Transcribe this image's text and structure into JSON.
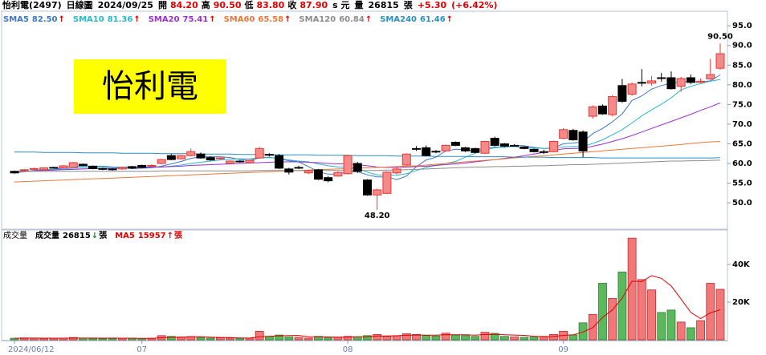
{
  "header": {
    "stock": "怡利電(2497)",
    "period": "日線圖",
    "date": "2024/09/25",
    "quotes": [
      {
        "label": "開",
        "value": "84.20"
      },
      {
        "label": "高",
        "value": "90.50"
      },
      {
        "label": "低",
        "value": "83.80"
      },
      {
        "label": "收",
        "value": "87.90"
      }
    ],
    "currency": "s 元",
    "volume_label": "量",
    "volume": "26815",
    "volume_unit": "張",
    "change": "+5.30",
    "change_pct": "(+6.42%)"
  },
  "watermark": "怡利電",
  "chart_data": [
    {
      "type": "candlestick",
      "categories": [
        "2024/06/12",
        null,
        null,
        null,
        null,
        null,
        null,
        null,
        null,
        null,
        null,
        null,
        null,
        "07",
        null,
        null,
        null,
        null,
        null,
        null,
        null,
        null,
        null,
        null,
        null,
        null,
        null,
        null,
        null,
        null,
        null,
        null,
        null,
        null,
        "08",
        null,
        null,
        null,
        null,
        null,
        null,
        null,
        null,
        null,
        null,
        null,
        null,
        null,
        null,
        null,
        null,
        null,
        null,
        null,
        null,
        null,
        "09",
        null,
        null,
        null,
        null,
        null,
        null,
        null,
        null,
        null,
        null,
        null,
        null,
        null,
        null,
        null,
        null
      ],
      "open": [
        58.0,
        58.2,
        58.6,
        58.4,
        59.0,
        58.9,
        59.0,
        59.8,
        59.3,
        58.7,
        58.6,
        58.6,
        59.2,
        59.5,
        59.4,
        60.0,
        62.0,
        61.2,
        62.0,
        62.4,
        61.5,
        61.3,
        60.0,
        60.6,
        60.2,
        61.4,
        62.3,
        62.0,
        58.6,
        59.0,
        57.6,
        58.4,
        56.4,
        56.8,
        57.4,
        60.0,
        55.8,
        52.0,
        52.4,
        57.6,
        59.6,
        63.8,
        64.0,
        63.1,
        63.2,
        65.4,
        64.0,
        63.8,
        62.6,
        66.4,
        65.0,
        64.6,
        64.2,
        63.6,
        63.0,
        63.0,
        66.4,
        68.4,
        68.0,
        72.0,
        74.6,
        72.4,
        79.8,
        77.6,
        80.6,
        80.4,
        81.8,
        81.8,
        79.6,
        81.8,
        80.6,
        81.5,
        84.2
      ],
      "high": [
        58.2,
        58.6,
        58.9,
        59.0,
        59.2,
        59.6,
        60.4,
        60.0,
        59.5,
        58.9,
        58.8,
        59.2,
        59.4,
        59.7,
        59.8,
        61.2,
        62.4,
        62.2,
        63.8,
        62.8,
        61.8,
        61.6,
        60.8,
        60.8,
        61.0,
        64.2,
        62.6,
        62.4,
        58.9,
        59.4,
        58.4,
        58.6,
        56.8,
        58.0,
        62.2,
        60.4,
        56.0,
        53.6,
        58.0,
        59.0,
        62.6,
        64.4,
        64.6,
        63.4,
        64.8,
        65.6,
        64.2,
        64.0,
        65.8,
        66.8,
        65.2,
        64.9,
        64.4,
        63.8,
        63.5,
        65.8,
        69.0,
        68.8,
        68.4,
        74.8,
        75.0,
        77.4,
        81.5,
        80.6,
        84.0,
        82.2,
        83.0,
        83.4,
        82.0,
        82.6,
        81.6,
        86.6,
        90.5
      ],
      "low": [
        57.4,
        57.9,
        58.3,
        58.2,
        58.7,
        58.7,
        58.9,
        59.3,
        58.5,
        58.3,
        58.2,
        58.4,
        58.6,
        58.8,
        59.2,
        59.8,
        60.8,
        61.0,
        61.8,
        61.2,
        60.7,
        61.0,
        59.8,
        60.2,
        60.0,
        61.2,
        61.8,
        58.6,
        57.2,
        58.6,
        57.3,
        55.8,
        55.2,
        56.6,
        57.2,
        57.6,
        51.8,
        48.2,
        52.2,
        57.2,
        59.4,
        63.2,
        61.8,
        62.6,
        63.0,
        64.4,
        62.9,
        62.6,
        62.4,
        64.4,
        64.2,
        64.3,
        63.6,
        62.8,
        62.4,
        62.8,
        66.2,
        65.8,
        61.6,
        71.4,
        72.4,
        72.0,
        75.4,
        77.2,
        79.6,
        79.8,
        80.8,
        78.8,
        78.2,
        80.2,
        80.4,
        81.2,
        83.8
      ],
      "close": [
        57.6,
        58.4,
        58.7,
        58.9,
        59.0,
        59.4,
        60.2,
        59.5,
        58.7,
        58.6,
        58.5,
        59.0,
        58.8,
        59.0,
        59.5,
        61.0,
        61.0,
        62.0,
        63.0,
        61.4,
        60.9,
        61.4,
        60.6,
        60.5,
        60.8,
        63.8,
        62.2,
        58.8,
        57.8,
        59.0,
        58.2,
        56.0,
        55.6,
        57.7,
        62.0,
        58.0,
        52.0,
        53.3,
        57.8,
        58.6,
        62.4,
        63.8,
        62.0,
        63.0,
        64.6,
        64.6,
        63.2,
        62.8,
        65.6,
        64.6,
        64.4,
        64.6,
        63.8,
        63.0,
        63.0,
        65.6,
        68.6,
        66.0,
        63.2,
        74.4,
        72.6,
        77.0,
        75.8,
        80.2,
        80.6,
        81.0,
        81.6,
        79.0,
        81.6,
        80.6,
        80.9,
        82.6,
        87.9
      ],
      "up_color": "#e53935",
      "up_fill": "#f48a8a",
      "down_color": "#000000",
      "series": [
        {
          "name": "SMA5",
          "value_label": "82.50",
          "trend": "↑",
          "color": "#3a78c8",
          "values": [
            57.6,
            57.9,
            58.2,
            58.4,
            58.5,
            58.9,
            59.2,
            59.3,
            59.3,
            59.3,
            59.1,
            58.9,
            58.7,
            58.8,
            58.9,
            59.3,
            59.9,
            60.5,
            61.3,
            61.7,
            61.7,
            61.7,
            61.5,
            61.0,
            60.8,
            61.4,
            61.6,
            61.2,
            60.7,
            60.4,
            59.2,
            57.9,
            57.3,
            57.3,
            57.9,
            57.9,
            57.1,
            56.6,
            56.6,
            55.9,
            56.8,
            59.2,
            60.9,
            61.6,
            63.2,
            63.6,
            63.5,
            63.2,
            63.8,
            64.2,
            64.1,
            64.6,
            64.5,
            64.1,
            63.8,
            64.0,
            65.0,
            65.2,
            65.5,
            67.6,
            68.9,
            70.6,
            72.6,
            76.0,
            77.2,
            78.9,
            79.8,
            80.4,
            80.8,
            80.7,
            80.7,
            81.0,
            82.5
          ]
        },
        {
          "name": "SMA10",
          "value_label": "81.36",
          "trend": "↑",
          "color": "#2ab7c9",
          "values": [
            57.8,
            57.9,
            58.1,
            58.3,
            58.5,
            58.6,
            58.8,
            58.9,
            59.0,
            59.0,
            59.1,
            59.1,
            59.1,
            59.1,
            59.1,
            59.1,
            59.3,
            59.6,
            60.0,
            60.3,
            60.6,
            60.9,
            61.1,
            61.2,
            61.2,
            61.4,
            61.5,
            61.3,
            60.9,
            60.6,
            60.4,
            59.9,
            59.4,
            59.1,
            59.1,
            58.8,
            57.8,
            57.1,
            57.1,
            57.0,
            57.4,
            58.2,
            59.0,
            59.5,
            60.0,
            60.5,
            61.6,
            62.6,
            63.4,
            64.0,
            64.2,
            64.3,
            64.0,
            63.9,
            63.8,
            63.8,
            64.2,
            64.3,
            64.3,
            65.1,
            66.0,
            67.3,
            68.6,
            70.3,
            72.1,
            73.6,
            75.1,
            76.7,
            78.7,
            79.6,
            80.3,
            80.9,
            81.36
          ]
        },
        {
          "name": "SMA20",
          "value_label": "75.41",
          "trend": "↑",
          "color": "#9b30d0",
          "values": [
            57.9,
            58.0,
            58.1,
            58.2,
            58.3,
            58.4,
            58.5,
            58.6,
            58.7,
            58.7,
            58.8,
            58.8,
            58.9,
            58.9,
            59.0,
            59.1,
            59.2,
            59.3,
            59.5,
            59.6,
            59.7,
            59.8,
            59.9,
            60.0,
            60.1,
            60.2,
            60.3,
            60.4,
            60.4,
            60.4,
            60.3,
            60.2,
            60.0,
            59.9,
            59.9,
            59.7,
            59.4,
            59.1,
            59.0,
            59.0,
            59.1,
            59.2,
            59.3,
            59.5,
            59.7,
            59.9,
            60.1,
            60.4,
            60.7,
            61.0,
            61.3,
            61.6,
            62.0,
            62.4,
            62.8,
            63.3,
            63.7,
            63.8,
            63.8,
            64.4,
            64.9,
            65.6,
            66.3,
            67.1,
            68.0,
            68.9,
            69.8,
            70.7,
            71.6,
            72.5,
            73.5,
            74.4,
            75.41
          ]
        },
        {
          "name": "SMA60",
          "value_label": "65.58",
          "trend": "↑",
          "color": "#e8783a",
          "values": [
            55.3,
            55.4,
            55.5,
            55.6,
            55.7,
            55.8,
            55.9,
            56.0,
            56.1,
            56.2,
            56.3,
            56.4,
            56.5,
            56.6,
            56.7,
            56.8,
            56.9,
            57.0,
            57.1,
            57.2,
            57.3,
            57.4,
            57.5,
            57.6,
            57.7,
            57.8,
            57.9,
            58.0,
            58.1,
            58.2,
            58.3,
            58.4,
            58.5,
            58.6,
            58.7,
            58.8,
            58.9,
            59.0,
            59.1,
            59.2,
            59.3,
            59.4,
            59.6,
            59.8,
            60.0,
            60.2,
            60.4,
            60.6,
            60.8,
            61.0,
            61.2,
            61.4,
            61.6,
            61.8,
            62.0,
            62.2,
            62.4,
            62.6,
            62.8,
            63.0,
            63.2,
            63.4,
            63.6,
            63.8,
            64.0,
            64.2,
            64.4,
            64.6,
            64.8,
            65.1,
            65.3,
            65.5,
            65.58
          ]
        },
        {
          "name": "SMA120",
          "value_label": "60.84",
          "trend": "↑",
          "color": "#8c8c8c",
          "values": [
            58.0,
            58.0,
            58.0,
            58.0,
            58.0,
            58.0,
            58.0,
            58.0,
            58.0,
            58.0,
            58.0,
            58.0,
            58.0,
            58.0,
            58.0,
            58.1,
            58.1,
            58.1,
            58.1,
            58.1,
            58.1,
            58.1,
            58.1,
            58.1,
            58.1,
            58.2,
            58.2,
            58.2,
            58.2,
            58.2,
            58.2,
            58.2,
            58.2,
            58.2,
            58.2,
            58.2,
            58.2,
            58.2,
            58.3,
            58.3,
            58.4,
            58.5,
            58.6,
            58.7,
            58.8,
            58.9,
            59.0,
            59.1,
            59.1,
            59.2,
            59.2,
            59.3,
            59.3,
            59.4,
            59.4,
            59.5,
            59.6,
            59.7,
            59.7,
            59.8,
            59.9,
            60.0,
            60.1,
            60.2,
            60.3,
            60.4,
            60.5,
            60.6,
            60.6,
            60.7,
            60.7,
            60.8,
            60.84
          ]
        },
        {
          "name": "SMA240",
          "value_label": "61.46",
          "trend": "↑",
          "color": "#2a8fc0",
          "values": [
            62.9,
            62.9,
            62.9,
            62.8,
            62.8,
            62.8,
            62.8,
            62.7,
            62.7,
            62.7,
            62.7,
            62.6,
            62.6,
            62.6,
            62.6,
            62.5,
            62.5,
            62.5,
            62.5,
            62.4,
            62.4,
            62.4,
            62.4,
            62.3,
            62.3,
            62.3,
            62.3,
            62.2,
            62.2,
            62.2,
            62.2,
            62.1,
            62.1,
            62.1,
            62.1,
            62.0,
            62.0,
            62.0,
            62.0,
            61.9,
            61.9,
            61.9,
            61.9,
            61.8,
            61.8,
            61.8,
            61.8,
            61.7,
            61.7,
            61.7,
            61.7,
            61.6,
            61.6,
            61.6,
            61.6,
            61.5,
            61.5,
            61.5,
            61.5,
            61.5,
            61.4,
            61.4,
            61.4,
            61.4,
            61.4,
            61.4,
            61.4,
            61.4,
            61.4,
            61.4,
            61.4,
            61.4,
            61.46
          ]
        }
      ],
      "annotations": [
        {
          "value": 90.5,
          "label": "90.50"
        },
        {
          "value": 48.2,
          "label": "48.20"
        }
      ],
      "ylim": [
        43.5,
        98.7
      ],
      "yticks": [
        {
          "value": 95,
          "label": "95.0"
        },
        {
          "value": 90,
          "label": "90.0"
        },
        {
          "value": 85,
          "label": "85.0"
        },
        {
          "value": 80,
          "label": "80.0"
        },
        {
          "value": 75,
          "label": "75.0"
        },
        {
          "value": 70,
          "label": "70.0"
        },
        {
          "value": 65,
          "label": "65.0"
        },
        {
          "value": 60,
          "label": "60.0"
        },
        {
          "value": 55,
          "label": "55.0"
        },
        {
          "value": 50,
          "label": "50.0"
        }
      ]
    },
    {
      "type": "bar",
      "panel_title": "成交量",
      "up_color": "#c62828",
      "up_fill": "#f07878",
      "down_color": "#2e7d32",
      "down_fill": "#5cb85c",
      "series": [
        {
          "name": "成交量",
          "value_label": "26815",
          "trend": "↓",
          "unit": "張",
          "color": "#000000",
          "values": [
            800,
            1000,
            900,
            700,
            900,
            800,
            1200,
            900,
            700,
            600,
            700,
            800,
            900,
            700,
            800,
            2200,
            1800,
            1500,
            1700,
            1200,
            900,
            1000,
            900,
            800,
            900,
            4500,
            1800,
            2500,
            1500,
            1200,
            900,
            1800,
            1300,
            1400,
            1800,
            1600,
            2200,
            2800,
            1800,
            2200,
            3200,
            2800,
            2300,
            2000,
            3500,
            2600,
            2200,
            1800,
            4000,
            3400,
            1800,
            1500,
            1300,
            1400,
            1800,
            2800,
            4500,
            2600,
            9000,
            13500,
            30000,
            22000,
            36000,
            54000,
            32000,
            26500,
            14500,
            15800,
            9400,
            6400,
            10200,
            30000,
            26815
          ]
        },
        {
          "name": "MA5",
          "value_label": "15957",
          "trend": "↑",
          "unit": "張",
          "color": "#e00000",
          "values": [
            800,
            850,
            900,
            850,
            860,
            860,
            900,
            900,
            900,
            860,
            880,
            840,
            820,
            740,
            740,
            1080,
            1280,
            1400,
            1600,
            1680,
            1420,
            1220,
            1140,
            960,
            900,
            1620,
            1780,
            2100,
            2240,
            2300,
            1580,
            1580,
            1540,
            1320,
            1440,
            1580,
            1660,
            1940,
            2040,
            2120,
            2400,
            2560,
            2460,
            2460,
            2720,
            2680,
            2680,
            2480,
            2820,
            2840,
            2640,
            2500,
            2360,
            1880,
            1560,
            1740,
            2360,
            2620,
            4140,
            6480,
            11920,
            15820,
            22100,
            31100,
            30900,
            34100,
            32600,
            28560,
            21640,
            14520,
            11260,
            14360,
            15957
          ]
        }
      ],
      "ylim": [
        0,
        57900
      ],
      "yticks": [
        {
          "value": 40000,
          "label": "40K"
        },
        {
          "value": 20000,
          "label": "20K"
        }
      ]
    }
  ]
}
